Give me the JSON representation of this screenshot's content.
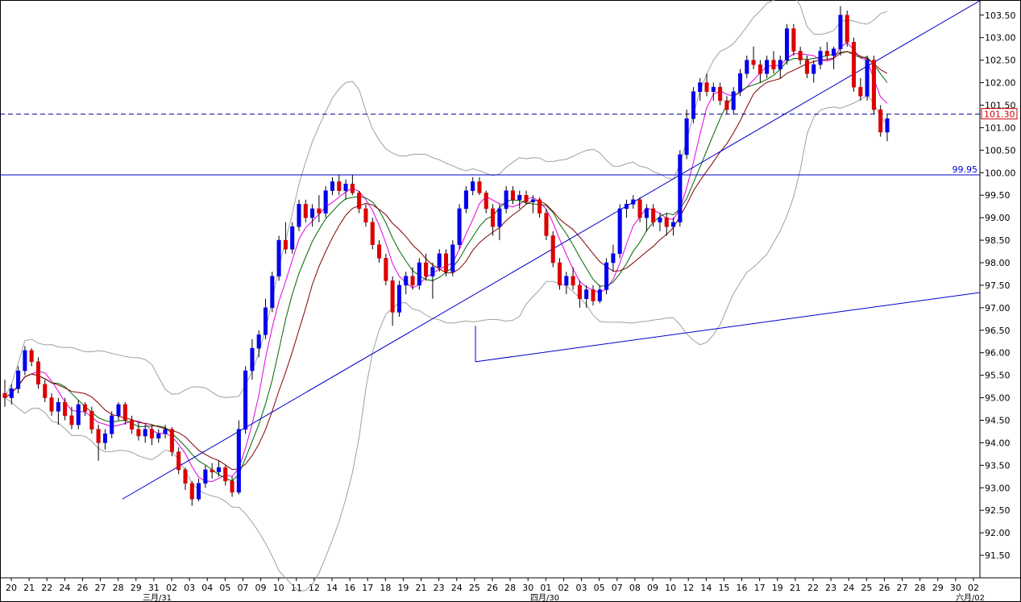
{
  "chart_data": {
    "type": "candlestick",
    "ylim": [
      91.0,
      103.8
    ],
    "y_ticks": [
      "91.50",
      "92.00",
      "92.50",
      "93.00",
      "93.50",
      "94.00",
      "94.50",
      "95.00",
      "95.50",
      "96.00",
      "96.50",
      "97.00",
      "97.50",
      "98.00",
      "98.50",
      "99.00",
      "99.50",
      "100.00",
      "100.50",
      "101.00",
      "101.50",
      "102.00",
      "102.50",
      "103.00",
      "103.50"
    ],
    "x_ticks": [
      "20",
      "21",
      "22",
      "24",
      "26",
      "27",
      "28",
      "29",
      "31",
      "02",
      "03",
      "04",
      "05",
      "07",
      "09",
      "10",
      "11",
      "12",
      "14",
      "16",
      "17",
      "18",
      "19",
      "21",
      "23",
      "24",
      "25",
      "26",
      "28",
      "30",
      "01",
      "02",
      "03",
      "05",
      "07",
      "08",
      "09",
      "10",
      "12",
      "14",
      "15",
      "16",
      "17",
      "19",
      "21",
      "22",
      "23",
      "24",
      "25",
      "26",
      "27",
      "28",
      "29",
      "30",
      "02"
    ],
    "month_labels": [
      "三月/31",
      "四月/30",
      "六月/02"
    ],
    "horizontal_lines": [
      {
        "value": 99.95,
        "label": "99.95",
        "style": "solid",
        "color": "#0000cc"
      },
      {
        "value": 101.3,
        "label": "101.30",
        "style": "dashed",
        "color": "#000099",
        "label_color": "#cc0000"
      }
    ],
    "trendlines": [
      {
        "name": "lower trendline",
        "points": [
          [
            4.0,
            92.75
          ],
          [
            24.8,
            100.65
          ]
        ],
        "extend": true
      },
      {
        "name": "upper trendline",
        "points": [
          [
            16.0,
            95.8
          ],
          [
            30.5,
            97.1
          ]
        ],
        "extend": true
      }
    ],
    "candles": [
      {
        "o": 95.1,
        "h": 95.4,
        "l": 94.8,
        "c": 95.0
      },
      {
        "o": 95.0,
        "h": 95.3,
        "l": 94.85,
        "c": 95.2
      },
      {
        "o": 95.2,
        "h": 95.7,
        "l": 95.1,
        "c": 95.6
      },
      {
        "o": 95.6,
        "h": 96.15,
        "l": 95.5,
        "c": 96.05
      },
      {
        "o": 96.05,
        "h": 96.1,
        "l": 95.7,
        "c": 95.8
      },
      {
        "o": 95.8,
        "h": 95.9,
        "l": 95.2,
        "c": 95.3
      },
      {
        "o": 95.3,
        "h": 95.4,
        "l": 94.9,
        "c": 95.0
      },
      {
        "o": 95.0,
        "h": 95.1,
        "l": 94.6,
        "c": 94.7
      },
      {
        "o": 94.7,
        "h": 95.0,
        "l": 94.4,
        "c": 94.9
      },
      {
        "o": 94.9,
        "h": 95.0,
        "l": 94.5,
        "c": 94.6
      },
      {
        "o": 94.6,
        "h": 94.8,
        "l": 94.3,
        "c": 94.4
      },
      {
        "o": 94.4,
        "h": 94.95,
        "l": 94.3,
        "c": 94.85
      },
      {
        "o": 94.85,
        "h": 94.9,
        "l": 94.6,
        "c": 94.7
      },
      {
        "o": 94.7,
        "h": 94.8,
        "l": 94.2,
        "c": 94.3
      },
      {
        "o": 94.3,
        "h": 94.4,
        "l": 93.6,
        "c": 94.0
      },
      {
        "o": 94.0,
        "h": 94.3,
        "l": 93.85,
        "c": 94.2
      },
      {
        "o": 94.2,
        "h": 94.7,
        "l": 94.1,
        "c": 94.6
      },
      {
        "o": 94.6,
        "h": 94.9,
        "l": 94.5,
        "c": 94.85
      },
      {
        "o": 94.85,
        "h": 94.9,
        "l": 94.4,
        "c": 94.5
      },
      {
        "o": 94.5,
        "h": 94.6,
        "l": 94.2,
        "c": 94.3
      },
      {
        "o": 94.3,
        "h": 94.45,
        "l": 94.05,
        "c": 94.15
      },
      {
        "o": 94.15,
        "h": 94.4,
        "l": 94.0,
        "c": 94.3
      },
      {
        "o": 94.3,
        "h": 94.4,
        "l": 93.95,
        "c": 94.1
      },
      {
        "o": 94.1,
        "h": 94.3,
        "l": 94.0,
        "c": 94.2
      },
      {
        "o": 94.2,
        "h": 94.4,
        "l": 94.1,
        "c": 94.3
      },
      {
        "o": 94.3,
        "h": 94.35,
        "l": 93.7,
        "c": 93.8
      },
      {
        "o": 93.8,
        "h": 93.9,
        "l": 93.3,
        "c": 93.4
      },
      {
        "o": 93.4,
        "h": 93.45,
        "l": 92.95,
        "c": 93.1
      },
      {
        "o": 93.1,
        "h": 93.15,
        "l": 92.6,
        "c": 92.75
      },
      {
        "o": 92.75,
        "h": 93.2,
        "l": 92.7,
        "c": 93.1
      },
      {
        "o": 93.1,
        "h": 93.5,
        "l": 93.0,
        "c": 93.4
      },
      {
        "o": 93.4,
        "h": 93.55,
        "l": 93.2,
        "c": 93.35
      },
      {
        "o": 93.35,
        "h": 93.6,
        "l": 93.25,
        "c": 93.45
      },
      {
        "o": 93.45,
        "h": 93.5,
        "l": 93.05,
        "c": 93.15
      },
      {
        "o": 93.15,
        "h": 93.25,
        "l": 92.8,
        "c": 92.9
      },
      {
        "o": 92.9,
        "h": 94.5,
        "l": 92.85,
        "c": 94.3
      },
      {
        "o": 94.3,
        "h": 95.7,
        "l": 94.2,
        "c": 95.6
      },
      {
        "o": 95.6,
        "h": 96.3,
        "l": 95.4,
        "c": 96.1
      },
      {
        "o": 96.1,
        "h": 96.5,
        "l": 95.9,
        "c": 96.4
      },
      {
        "o": 96.4,
        "h": 97.2,
        "l": 96.3,
        "c": 97.0
      },
      {
        "o": 97.0,
        "h": 97.8,
        "l": 96.9,
        "c": 97.7
      },
      {
        "o": 97.7,
        "h": 98.6,
        "l": 97.6,
        "c": 98.5
      },
      {
        "o": 98.5,
        "h": 98.9,
        "l": 98.2,
        "c": 98.3
      },
      {
        "o": 98.3,
        "h": 98.9,
        "l": 98.2,
        "c": 98.8
      },
      {
        "o": 98.8,
        "h": 99.4,
        "l": 98.7,
        "c": 99.3
      },
      {
        "o": 99.3,
        "h": 99.4,
        "l": 98.9,
        "c": 99.0
      },
      {
        "o": 99.0,
        "h": 99.3,
        "l": 98.8,
        "c": 99.2
      },
      {
        "o": 99.2,
        "h": 99.5,
        "l": 98.9,
        "c": 99.1
      },
      {
        "o": 99.1,
        "h": 99.7,
        "l": 99.0,
        "c": 99.6
      },
      {
        "o": 99.6,
        "h": 99.9,
        "l": 99.5,
        "c": 99.8
      },
      {
        "o": 99.8,
        "h": 99.95,
        "l": 99.5,
        "c": 99.6
      },
      {
        "o": 99.6,
        "h": 99.85,
        "l": 99.4,
        "c": 99.75
      },
      {
        "o": 99.75,
        "h": 99.95,
        "l": 99.5,
        "c": 99.55
      },
      {
        "o": 99.55,
        "h": 99.6,
        "l": 99.1,
        "c": 99.2
      },
      {
        "o": 99.2,
        "h": 99.3,
        "l": 98.8,
        "c": 98.9
      },
      {
        "o": 98.9,
        "h": 99.0,
        "l": 98.3,
        "c": 98.4
      },
      {
        "o": 98.4,
        "h": 98.5,
        "l": 98.0,
        "c": 98.1
      },
      {
        "o": 98.1,
        "h": 98.2,
        "l": 97.5,
        "c": 97.6
      },
      {
        "o": 97.6,
        "h": 97.7,
        "l": 96.6,
        "c": 96.9
      },
      {
        "o": 96.9,
        "h": 97.6,
        "l": 96.8,
        "c": 97.5
      },
      {
        "o": 97.5,
        "h": 97.8,
        "l": 97.3,
        "c": 97.7
      },
      {
        "o": 97.7,
        "h": 97.9,
        "l": 97.4,
        "c": 97.5
      },
      {
        "o": 97.5,
        "h": 98.1,
        "l": 97.4,
        "c": 98.0
      },
      {
        "o": 98.0,
        "h": 98.2,
        "l": 97.6,
        "c": 97.7
      },
      {
        "o": 97.7,
        "h": 98.0,
        "l": 97.2,
        "c": 97.9
      },
      {
        "o": 97.9,
        "h": 98.3,
        "l": 97.8,
        "c": 98.2
      },
      {
        "o": 98.2,
        "h": 98.3,
        "l": 97.7,
        "c": 97.8
      },
      {
        "o": 97.8,
        "h": 98.5,
        "l": 97.7,
        "c": 98.4
      },
      {
        "o": 98.4,
        "h": 99.3,
        "l": 98.3,
        "c": 99.2
      },
      {
        "o": 99.2,
        "h": 99.7,
        "l": 99.1,
        "c": 99.6
      },
      {
        "o": 99.6,
        "h": 99.9,
        "l": 99.5,
        "c": 99.8
      },
      {
        "o": 99.8,
        "h": 99.9,
        "l": 99.5,
        "c": 99.55
      },
      {
        "o": 99.55,
        "h": 99.6,
        "l": 99.1,
        "c": 99.2
      },
      {
        "o": 99.2,
        "h": 99.3,
        "l": 98.6,
        "c": 98.8
      },
      {
        "o": 98.8,
        "h": 99.3,
        "l": 98.5,
        "c": 99.2
      },
      {
        "o": 99.2,
        "h": 99.7,
        "l": 99.1,
        "c": 99.6
      },
      {
        "o": 99.6,
        "h": 99.7,
        "l": 99.3,
        "c": 99.4
      },
      {
        "o": 99.4,
        "h": 99.6,
        "l": 99.2,
        "c": 99.5
      },
      {
        "o": 99.5,
        "h": 99.6,
        "l": 99.3,
        "c": 99.35
      },
      {
        "o": 99.35,
        "h": 99.5,
        "l": 99.1,
        "c": 99.4
      },
      {
        "o": 99.4,
        "h": 99.45,
        "l": 99.0,
        "c": 99.1
      },
      {
        "o": 99.1,
        "h": 99.2,
        "l": 98.5,
        "c": 98.6
      },
      {
        "o": 98.6,
        "h": 98.7,
        "l": 97.9,
        "c": 98.0
      },
      {
        "o": 98.0,
        "h": 98.1,
        "l": 97.4,
        "c": 97.5
      },
      {
        "o": 97.5,
        "h": 97.8,
        "l": 97.3,
        "c": 97.7
      },
      {
        "o": 97.7,
        "h": 97.9,
        "l": 97.4,
        "c": 97.5
      },
      {
        "o": 97.5,
        "h": 97.6,
        "l": 97.0,
        "c": 97.2
      },
      {
        "o": 97.2,
        "h": 97.5,
        "l": 97.0,
        "c": 97.4
      },
      {
        "o": 97.4,
        "h": 97.5,
        "l": 97.05,
        "c": 97.15
      },
      {
        "o": 97.15,
        "h": 97.5,
        "l": 97.1,
        "c": 97.4
      },
      {
        "o": 97.4,
        "h": 98.1,
        "l": 97.3,
        "c": 98.0
      },
      {
        "o": 98.0,
        "h": 98.4,
        "l": 97.8,
        "c": 98.2
      },
      {
        "o": 98.2,
        "h": 99.3,
        "l": 98.1,
        "c": 99.2
      },
      {
        "o": 99.2,
        "h": 99.4,
        "l": 99.0,
        "c": 99.3
      },
      {
        "o": 99.3,
        "h": 99.5,
        "l": 99.2,
        "c": 99.4
      },
      {
        "o": 99.4,
        "h": 99.45,
        "l": 98.9,
        "c": 99.0
      },
      {
        "o": 99.0,
        "h": 99.3,
        "l": 98.7,
        "c": 99.2
      },
      {
        "o": 99.2,
        "h": 99.3,
        "l": 98.8,
        "c": 98.9
      },
      {
        "o": 98.9,
        "h": 99.1,
        "l": 98.7,
        "c": 99.0
      },
      {
        "o": 99.0,
        "h": 99.1,
        "l": 98.6,
        "c": 98.8
      },
      {
        "o": 98.8,
        "h": 99.0,
        "l": 98.6,
        "c": 98.9
      },
      {
        "o": 98.9,
        "h": 100.5,
        "l": 98.8,
        "c": 100.4
      },
      {
        "o": 100.4,
        "h": 101.4,
        "l": 100.3,
        "c": 101.2
      },
      {
        "o": 101.2,
        "h": 101.9,
        "l": 101.1,
        "c": 101.8
      },
      {
        "o": 101.8,
        "h": 102.1,
        "l": 101.6,
        "c": 102.0
      },
      {
        "o": 102.0,
        "h": 102.2,
        "l": 101.7,
        "c": 101.8
      },
      {
        "o": 101.8,
        "h": 102.0,
        "l": 101.6,
        "c": 101.9
      },
      {
        "o": 101.9,
        "h": 102.0,
        "l": 101.5,
        "c": 101.6
      },
      {
        "o": 101.6,
        "h": 101.7,
        "l": 101.3,
        "c": 101.4
      },
      {
        "o": 101.4,
        "h": 101.9,
        "l": 101.3,
        "c": 101.8
      },
      {
        "o": 101.8,
        "h": 102.3,
        "l": 101.7,
        "c": 102.2
      },
      {
        "o": 102.2,
        "h": 102.6,
        "l": 102.1,
        "c": 102.5
      },
      {
        "o": 102.5,
        "h": 102.8,
        "l": 102.3,
        "c": 102.4
      },
      {
        "o": 102.4,
        "h": 102.5,
        "l": 102.0,
        "c": 102.2
      },
      {
        "o": 102.2,
        "h": 102.6,
        "l": 102.1,
        "c": 102.5
      },
      {
        "o": 102.5,
        "h": 102.7,
        "l": 102.2,
        "c": 102.3
      },
      {
        "o": 102.3,
        "h": 102.6,
        "l": 102.1,
        "c": 102.5
      },
      {
        "o": 102.5,
        "h": 103.3,
        "l": 102.4,
        "c": 103.2
      },
      {
        "o": 103.2,
        "h": 103.3,
        "l": 102.6,
        "c": 102.7
      },
      {
        "o": 102.7,
        "h": 102.8,
        "l": 102.4,
        "c": 102.5
      },
      {
        "o": 102.5,
        "h": 102.6,
        "l": 102.1,
        "c": 102.2
      },
      {
        "o": 102.2,
        "h": 102.5,
        "l": 102.0,
        "c": 102.4
      },
      {
        "o": 102.4,
        "h": 102.8,
        "l": 102.3,
        "c": 102.7
      },
      {
        "o": 102.7,
        "h": 102.9,
        "l": 102.5,
        "c": 102.6
      },
      {
        "o": 102.6,
        "h": 102.8,
        "l": 102.3,
        "c": 102.75
      },
      {
        "o": 102.75,
        "h": 103.7,
        "l": 102.6,
        "c": 103.5
      },
      {
        "o": 103.5,
        "h": 103.6,
        "l": 102.8,
        "c": 102.9
      },
      {
        "o": 102.9,
        "h": 103.0,
        "l": 101.8,
        "c": 101.9
      },
      {
        "o": 101.9,
        "h": 102.1,
        "l": 101.6,
        "c": 101.7
      },
      {
        "o": 101.7,
        "h": 102.6,
        "l": 101.6,
        "c": 102.5
      },
      {
        "o": 102.5,
        "h": 102.6,
        "l": 101.3,
        "c": 101.4
      },
      {
        "o": 101.4,
        "h": 101.5,
        "l": 100.8,
        "c": 100.9
      },
      {
        "o": 100.9,
        "h": 101.3,
        "l": 100.7,
        "c": 101.2
      }
    ]
  }
}
